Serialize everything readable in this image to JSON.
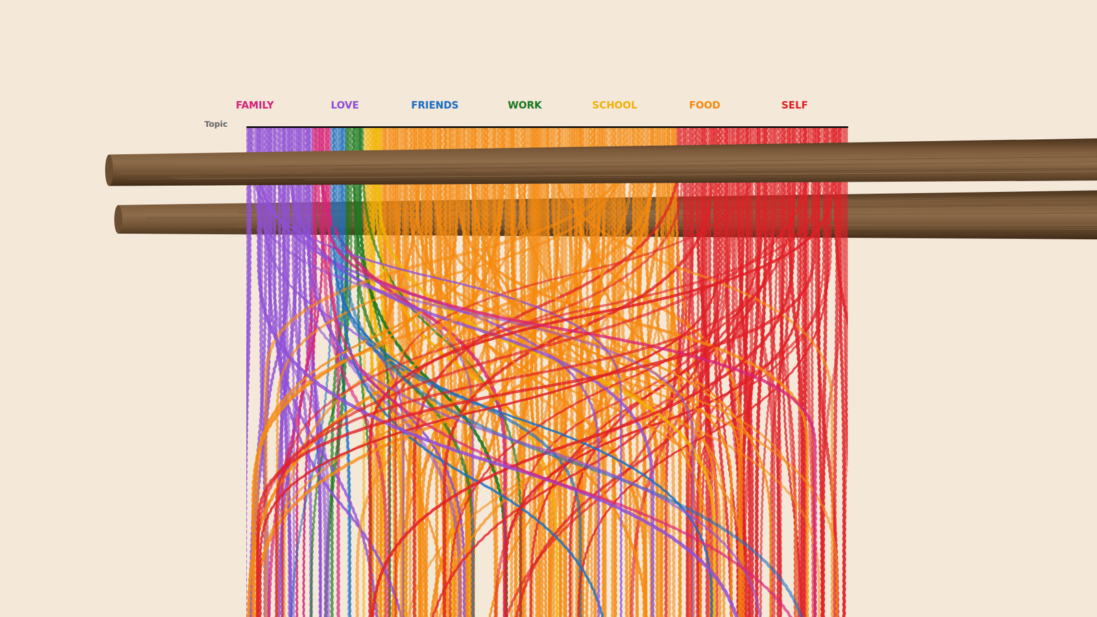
{
  "chart_data": {
    "type": "strands",
    "x_label": "Topic",
    "xlim": [
      0,
      100
    ],
    "xticks": [],
    "tick_labels": false,
    "series": [
      {
        "name": "FAMILY",
        "color": "#d6237a",
        "start": 11,
        "values": [
          3
        ]
      },
      {
        "name": "LOVE",
        "color": "#8f4fd8",
        "start": 0,
        "values": [
          11
        ]
      },
      {
        "name": "FRIENDS",
        "color": "#1a6fc4",
        "start": 14,
        "values": [
          2.5
        ]
      },
      {
        "name": "WORK",
        "color": "#17791f",
        "start": 16.5,
        "values": [
          3
        ]
      },
      {
        "name": "SCHOOL",
        "color": "#f2b200",
        "start": 19.5,
        "values": [
          3
        ]
      },
      {
        "name": "FOOD",
        "color": "#f58a0f",
        "start": 22.5,
        "values": [
          49
        ]
      },
      {
        "name": "SELF",
        "color": "#e01f26",
        "start": 71.5,
        "values": [
          28.5
        ]
      }
    ]
  }
}
